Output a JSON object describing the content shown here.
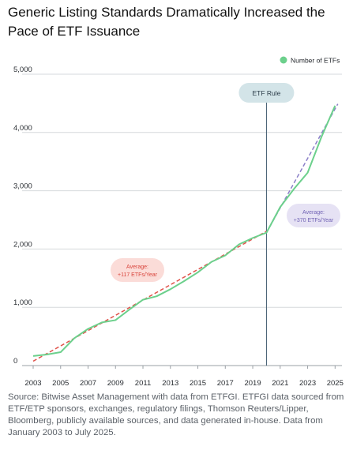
{
  "title": "Generic Listing Standards Dramatically Increased the Pace of ETF Issuance",
  "source": "Source: Bitwise Asset Management with data from ETFGI. ETFGI data sourced from ETF/ETP sponsors, exchanges, regulatory filings, Thomson Reuters/Lipper, Bloomberg, publicly available sources, and data generated in-house. Data from January 2003 to July 2025.",
  "chart_data": {
    "type": "line",
    "legend_position": "top-right",
    "grid": "horizontal",
    "xlim": [
      2003,
      2025.5
    ],
    "ylim": [
      0,
      5000
    ],
    "x_ticks": [
      "2003",
      "2005",
      "2007",
      "2009",
      "2011",
      "2013",
      "2015",
      "2017",
      "2019",
      "2021",
      "2023",
      "2025"
    ],
    "y_ticks": [
      "0",
      "1,000",
      "2,000",
      "3,000",
      "4,000",
      "5,000"
    ],
    "series": [
      {
        "name": "Number of ETFs",
        "color": "#6cd08c",
        "x": [
          2003,
          2004,
          2005,
          2006,
          2007,
          2008,
          2009,
          2010,
          2011,
          2012,
          2013,
          2014,
          2015,
          2016,
          2017,
          2018,
          2019,
          2020,
          2021,
          2022,
          2023,
          2024,
          2025
        ],
        "y": [
          165,
          190,
          230,
          470,
          630,
          740,
          780,
          960,
          1130,
          1190,
          1310,
          1450,
          1600,
          1780,
          1890,
          2080,
          2190,
          2280,
          2720,
          3030,
          3310,
          3920,
          4460
        ]
      }
    ],
    "trendlines": [
      {
        "label": "Average: +117 ETFs/Year",
        "color": "#e0534b",
        "x": [
          2003,
          2020
        ],
        "y": [
          75,
          2305
        ]
      },
      {
        "label": "Average: +370 ETFs/Year",
        "color": "#8b7fc8",
        "x": [
          2020,
          2025.2
        ],
        "y": [
          2280,
          4490
        ]
      }
    ],
    "annotations": [
      {
        "text": "ETF Rule",
        "x": 2020,
        "type": "vertical-line"
      }
    ]
  }
}
